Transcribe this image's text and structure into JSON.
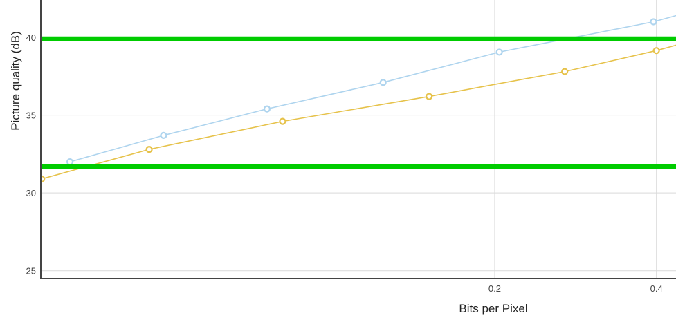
{
  "chart_data": {
    "type": "line",
    "xlabel": "Bits per Pixel",
    "ylabel": "Picture quality (dB)",
    "x_scale": "log",
    "xlim": [
      0.0286,
      0.435
    ],
    "ylim": [
      24.5,
      42.4
    ],
    "x_ticks": [
      {
        "value": 0.2,
        "label": "0.2"
      },
      {
        "value": 0.4,
        "label": "0.4"
      }
    ],
    "y_ticks": [
      {
        "value": 25,
        "label": "25"
      },
      {
        "value": 30,
        "label": "30"
      },
      {
        "value": 35,
        "label": "35"
      },
      {
        "value": 40,
        "label": "40"
      }
    ],
    "grid": true,
    "series": [
      {
        "color": "#aed4ee",
        "x": [
          0.0324,
          0.0484,
          0.0754,
          0.124,
          0.204,
          0.395,
          0.48
        ],
        "y": [
          32.0,
          33.7,
          35.4,
          37.1,
          39.05,
          41.0,
          41.8
        ]
      },
      {
        "color": "#e6c24a",
        "x": [
          0.0287,
          0.0455,
          0.0806,
          0.151,
          0.27,
          0.4,
          0.48
        ],
        "y": [
          30.9,
          32.8,
          34.6,
          36.2,
          37.8,
          39.15,
          39.9
        ]
      }
    ],
    "reference_lines": [
      {
        "y": 39.9,
        "color": "#00cc00"
      },
      {
        "y": 31.7,
        "color": "#00cc00"
      }
    ]
  }
}
